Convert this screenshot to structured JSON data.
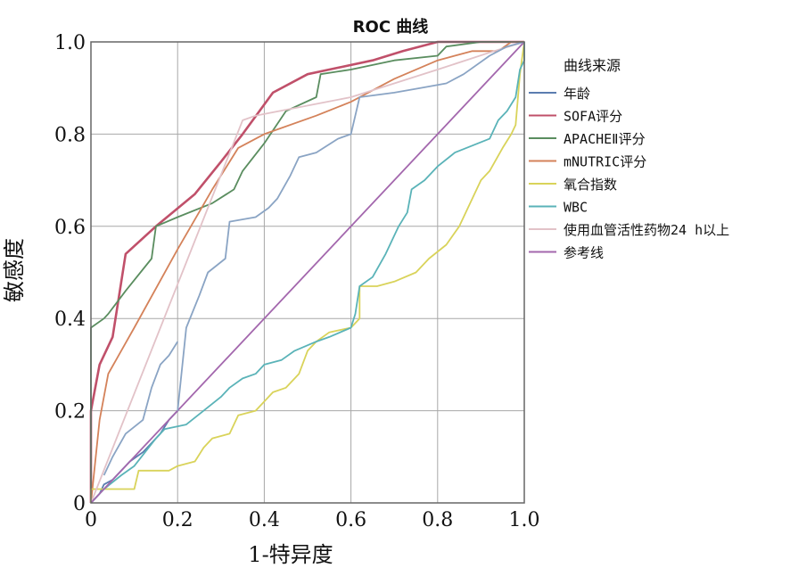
{
  "chart_data": {
    "type": "line",
    "title": "ROC 曲线",
    "xlabel": "1-特异度",
    "ylabel": "敏感度",
    "xlim": [
      0,
      1
    ],
    "ylim": [
      0,
      1
    ],
    "xticks": [
      "0",
      "0.2",
      "0.4",
      "0.6",
      "0.8",
      "1.0"
    ],
    "yticks": [
      "0",
      "0.2",
      "0.4",
      "0.6",
      "0.8",
      "1.0"
    ],
    "grid": true,
    "legend": {
      "title": "曲线来源",
      "position": "right"
    },
    "series": [
      {
        "name": "年龄",
        "color": "#5b7db0",
        "points": [
          [
            0,
            0
          ],
          [
            0.01,
            0.01
          ],
          [
            0.02,
            0.02
          ],
          [
            0.03,
            0.04
          ],
          [
            0.05,
            0.05
          ],
          [
            0.07,
            0.07
          ],
          [
            0.09,
            0.09
          ],
          [
            0.12,
            0.11
          ],
          [
            0.13,
            0.12
          ],
          [
            0.15,
            0.14
          ],
          [
            0.16,
            0.15
          ],
          [
            0.18,
            0.18
          ],
          [
            0.2,
            0.2
          ]
        ]
      },
      {
        "name": "SOFA评分",
        "color": "#c0506a",
        "points": [
          [
            0,
            0
          ],
          [
            0,
            0.2
          ],
          [
            0.02,
            0.3
          ],
          [
            0.05,
            0.36
          ],
          [
            0.08,
            0.54
          ],
          [
            0.15,
            0.6
          ],
          [
            0.24,
            0.67
          ],
          [
            0.3,
            0.74
          ],
          [
            0.35,
            0.8
          ],
          [
            0.42,
            0.89
          ],
          [
            0.5,
            0.93
          ],
          [
            0.55,
            0.94
          ],
          [
            0.65,
            0.96
          ],
          [
            0.72,
            0.98
          ],
          [
            0.8,
            1.0
          ],
          [
            1,
            1
          ]
        ]
      },
      {
        "name": "APACHEⅡ评分",
        "color": "#5a8d5f",
        "points": [
          [
            0,
            0
          ],
          [
            0,
            0.38
          ],
          [
            0.03,
            0.4
          ],
          [
            0.04,
            0.41
          ],
          [
            0.08,
            0.46
          ],
          [
            0.14,
            0.53
          ],
          [
            0.15,
            0.6
          ],
          [
            0.2,
            0.62
          ],
          [
            0.28,
            0.65
          ],
          [
            0.33,
            0.68
          ],
          [
            0.35,
            0.72
          ],
          [
            0.4,
            0.78
          ],
          [
            0.45,
            0.85
          ],
          [
            0.52,
            0.88
          ],
          [
            0.53,
            0.93
          ],
          [
            0.6,
            0.94
          ],
          [
            0.7,
            0.96
          ],
          [
            0.8,
            0.97
          ],
          [
            0.82,
            0.99
          ],
          [
            0.9,
            1.0
          ],
          [
            1,
            1
          ]
        ]
      },
      {
        "name": "mNUTRIC评分",
        "color": "#d4825a",
        "points": [
          [
            0,
            0
          ],
          [
            0.02,
            0.18
          ],
          [
            0.04,
            0.28
          ],
          [
            0.1,
            0.38
          ],
          [
            0.2,
            0.55
          ],
          [
            0.28,
            0.68
          ],
          [
            0.34,
            0.77
          ],
          [
            0.4,
            0.8
          ],
          [
            0.52,
            0.84
          ],
          [
            0.6,
            0.87
          ],
          [
            0.7,
            0.92
          ],
          [
            0.8,
            0.96
          ],
          [
            0.88,
            0.98
          ],
          [
            0.94,
            0.98
          ],
          [
            0.97,
            1.0
          ],
          [
            1,
            1
          ]
        ]
      },
      {
        "name": "氧合指数",
        "color": "#d9d35a",
        "points": [
          [
            0,
            0
          ],
          [
            0,
            0.03
          ],
          [
            0.1,
            0.03
          ],
          [
            0.11,
            0.07
          ],
          [
            0.18,
            0.07
          ],
          [
            0.2,
            0.08
          ],
          [
            0.24,
            0.09
          ],
          [
            0.26,
            0.12
          ],
          [
            0.28,
            0.14
          ],
          [
            0.32,
            0.15
          ],
          [
            0.34,
            0.19
          ],
          [
            0.38,
            0.2
          ],
          [
            0.4,
            0.22
          ],
          [
            0.42,
            0.24
          ],
          [
            0.45,
            0.25
          ],
          [
            0.48,
            0.28
          ],
          [
            0.5,
            0.33
          ],
          [
            0.52,
            0.35
          ],
          [
            0.55,
            0.37
          ],
          [
            0.6,
            0.38
          ],
          [
            0.62,
            0.4
          ],
          [
            0.62,
            0.47
          ],
          [
            0.66,
            0.47
          ],
          [
            0.7,
            0.48
          ],
          [
            0.75,
            0.5
          ],
          [
            0.78,
            0.53
          ],
          [
            0.82,
            0.56
          ],
          [
            0.85,
            0.6
          ],
          [
            0.87,
            0.64
          ],
          [
            0.9,
            0.7
          ],
          [
            0.92,
            0.72
          ],
          [
            0.95,
            0.77
          ],
          [
            0.97,
            0.8
          ],
          [
            0.98,
            0.82
          ],
          [
            0.99,
            0.93
          ],
          [
            1,
            1
          ]
        ]
      },
      {
        "name": "WBC",
        "color": "#5ab3b8",
        "points": [
          [
            0,
            0
          ],
          [
            0.03,
            0.03
          ],
          [
            0.07,
            0.06
          ],
          [
            0.1,
            0.08
          ],
          [
            0.15,
            0.14
          ],
          [
            0.17,
            0.16
          ],
          [
            0.22,
            0.17
          ],
          [
            0.26,
            0.2
          ],
          [
            0.3,
            0.23
          ],
          [
            0.32,
            0.25
          ],
          [
            0.35,
            0.27
          ],
          [
            0.38,
            0.28
          ],
          [
            0.4,
            0.3
          ],
          [
            0.44,
            0.31
          ],
          [
            0.47,
            0.33
          ],
          [
            0.52,
            0.35
          ],
          [
            0.55,
            0.36
          ],
          [
            0.6,
            0.38
          ],
          [
            0.61,
            0.41
          ],
          [
            0.62,
            0.47
          ],
          [
            0.65,
            0.49
          ],
          [
            0.68,
            0.54
          ],
          [
            0.71,
            0.6
          ],
          [
            0.73,
            0.63
          ],
          [
            0.74,
            0.68
          ],
          [
            0.77,
            0.7
          ],
          [
            0.8,
            0.73
          ],
          [
            0.84,
            0.76
          ],
          [
            0.92,
            0.79
          ],
          [
            0.94,
            0.83
          ],
          [
            0.96,
            0.85
          ],
          [
            0.98,
            0.88
          ],
          [
            0.99,
            0.94
          ],
          [
            1,
            0.96
          ],
          [
            1,
            1
          ]
        ]
      },
      {
        "name": "使用血管活性药物24 h以上",
        "color": "#e2c2c8",
        "points": [
          [
            0,
            0
          ],
          [
            0.35,
            0.83
          ],
          [
            0.38,
            0.84
          ],
          [
            0.6,
            0.88
          ],
          [
            0.8,
            0.94
          ],
          [
            0.93,
            0.98
          ],
          [
            1,
            1
          ]
        ]
      },
      {
        "name": "参考线",
        "color": "#a367ad",
        "points": [
          [
            0,
            0
          ],
          [
            1,
            1
          ]
        ]
      },
      {
        "name": "",
        "color": "#8aa4c4",
        "points": [
          [
            0.2,
            0.2
          ],
          [
            0.22,
            0.38
          ],
          [
            0.25,
            0.45
          ],
          [
            0.27,
            0.5
          ],
          [
            0.31,
            0.53
          ],
          [
            0.32,
            0.61
          ],
          [
            0.38,
            0.62
          ],
          [
            0.41,
            0.64
          ],
          [
            0.43,
            0.66
          ],
          [
            0.46,
            0.71
          ],
          [
            0.48,
            0.75
          ],
          [
            0.52,
            0.76
          ],
          [
            0.57,
            0.79
          ],
          [
            0.6,
            0.8
          ],
          [
            0.62,
            0.88
          ],
          [
            0.7,
            0.89
          ],
          [
            0.76,
            0.9
          ],
          [
            0.82,
            0.91
          ],
          [
            0.86,
            0.93
          ],
          [
            0.92,
            0.97
          ],
          [
            0.96,
            0.99
          ],
          [
            1,
            1
          ]
        ]
      },
      {
        "name": "",
        "color": "#8aa4c4",
        "points": [
          [
            0.03,
            0.06
          ],
          [
            0.05,
            0.1
          ],
          [
            0.08,
            0.15
          ],
          [
            0.12,
            0.18
          ],
          [
            0.14,
            0.25
          ],
          [
            0.16,
            0.3
          ],
          [
            0.18,
            0.32
          ],
          [
            0.2,
            0.35
          ]
        ]
      }
    ]
  }
}
